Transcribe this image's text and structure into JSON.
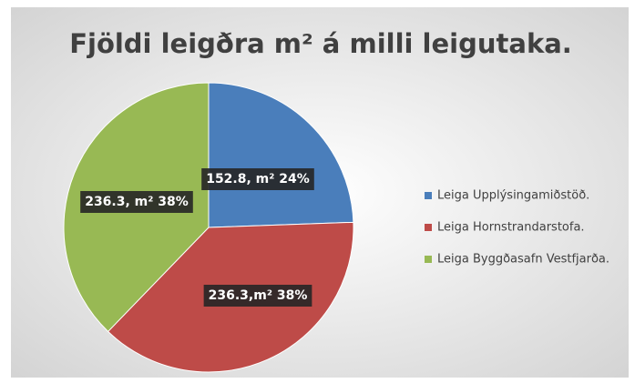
{
  "chart_data": {
    "type": "pie",
    "title": "Fjöldi leigðra m² á milli leigutaka.",
    "categories": [
      "Leiga Upplýsingamiðstöð.",
      "Leiga Hornstrandarstofa.",
      "Leiga Byggðasafn Vestfjarða."
    ],
    "values": [
      152.8,
      236.3,
      236.3
    ],
    "value_labels": [
      "152.8, m² 24%",
      "236.3,m² 38%",
      "236.3, m² 38%"
    ],
    "colors": [
      "#4a7ebb",
      "#be4b48",
      "#98b954"
    ],
    "legend": "right"
  }
}
